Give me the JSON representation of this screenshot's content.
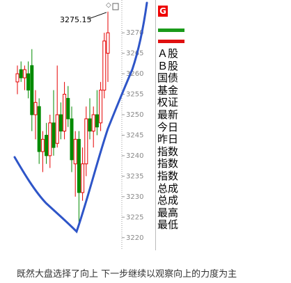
{
  "chart_data": {
    "type": "candlestick",
    "open": [
      3258,
      3261,
      3259,
      3260,
      3262,
      3250,
      3252,
      3241,
      3245,
      3240,
      3248,
      3243,
      3250,
      3246,
      3254,
      3249,
      3238,
      3244,
      3231,
      3238,
      3249,
      3246,
      3250,
      3248,
      3256,
      3265
    ],
    "high": [
      3262,
      3263,
      3262,
      3263,
      3266,
      3256,
      3254,
      3246,
      3248,
      3250,
      3256,
      3262,
      3253,
      3258,
      3257,
      3252,
      3246,
      3246,
      3242,
      3252,
      3254,
      3252,
      3256,
      3258,
      3270,
      3275.15
    ],
    "low": [
      3255,
      3258,
      3256,
      3254,
      3246,
      3244,
      3238,
      3236,
      3238,
      3237,
      3240,
      3242,
      3244,
      3244,
      3247,
      3236,
      3230,
      3223,
      3229,
      3235,
      3244,
      3242,
      3245,
      3246,
      3254,
      3258
    ],
    "close": [
      3260,
      3259,
      3261,
      3256,
      3250,
      3253,
      3241,
      3244,
      3240,
      3248,
      3242,
      3250,
      3246,
      3255,
      3249,
      3239,
      3244,
      3231,
      3238,
      3249,
      3246,
      3250,
      3247,
      3256,
      3268,
      3270
    ],
    "up_color": "#e60000",
    "down_color": "#008a00",
    "ylim": [
      3218.6,
      3278
    ],
    "yticks": [
      3220,
      3225,
      3230,
      3235,
      3240,
      3245,
      3250,
      3255,
      3260,
      3265,
      3270
    ],
    "annotation": "3275.15"
  },
  "side_panel": {
    "header": "G",
    "rows": [
      "Ａ股",
      "Ｂ股",
      "国债",
      "基金",
      "权证",
      "最新",
      "今日",
      "昨日",
      "指数",
      "指数",
      "指数",
      "总成",
      "总成",
      "最高",
      "最低"
    ]
  },
  "caption": "既然大盘选择了向上 下一步继续以观察向上的力度为主"
}
